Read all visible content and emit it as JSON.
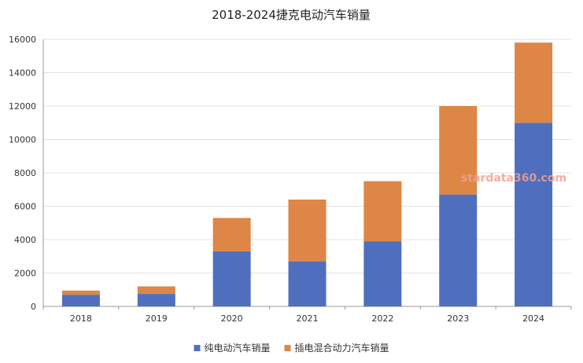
{
  "chart_data": {
    "type": "bar",
    "stacked": true,
    "title": "2018-2024捷克电动汽车销量",
    "xlabel": "",
    "ylabel": "",
    "categories": [
      "2018",
      "2019",
      "2020",
      "2021",
      "2022",
      "2023",
      "2024"
    ],
    "ylim": [
      0,
      16000
    ],
    "yticks": [
      0,
      2000,
      4000,
      6000,
      8000,
      10000,
      12000,
      14000,
      16000
    ],
    "grid": true,
    "legend": "bottom",
    "series": [
      {
        "name": "纯电动汽车销量",
        "color": "#4f6fbe",
        "values": [
          700,
          750,
          3300,
          2700,
          3900,
          6700,
          11000
        ]
      },
      {
        "name": "插电混合动力汽车销量",
        "color": "#de8646",
        "values": [
          250,
          450,
          2000,
          3700,
          3600,
          5300,
          4800
        ]
      }
    ]
  },
  "watermark": "stardata360.com"
}
